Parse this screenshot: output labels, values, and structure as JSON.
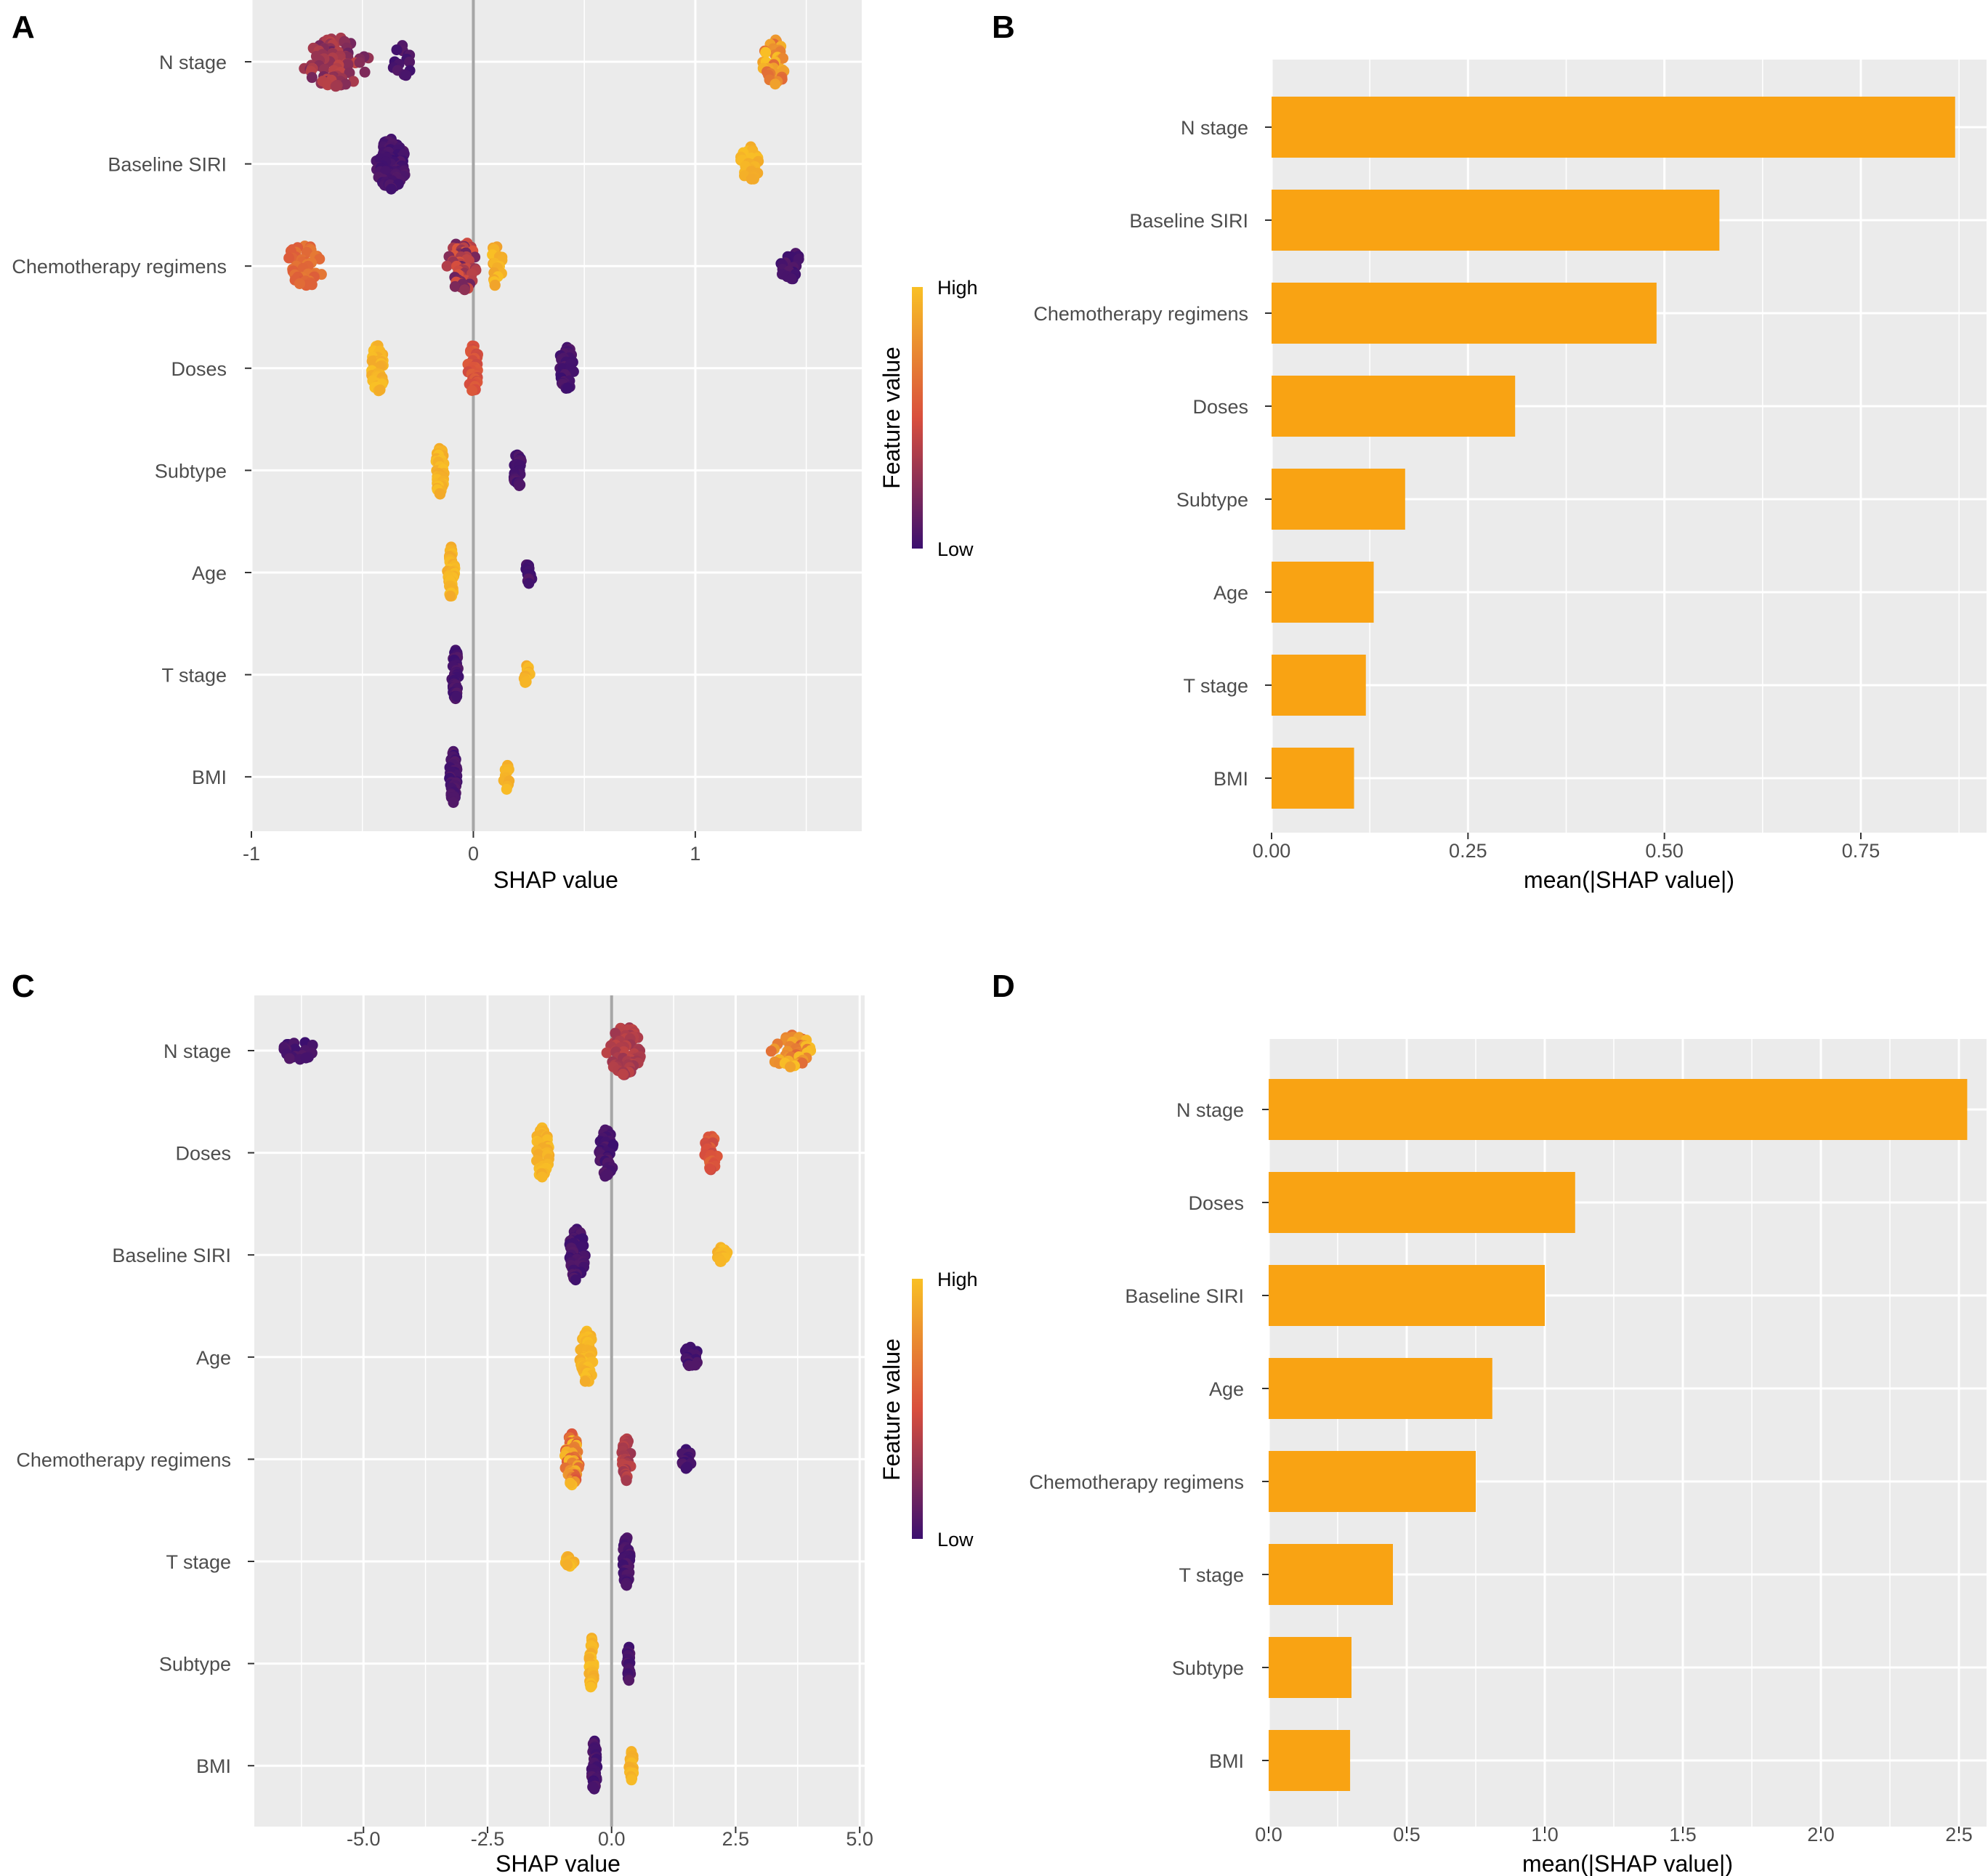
{
  "colors": {
    "panel_bg": "#EBEBEB",
    "grid": "#FFFFFF",
    "bar": "#F9A313",
    "zero_line": "#A6A6A6",
    "tick_text": "#4D4D4D",
    "gradient_high": "#F9C025",
    "gradient_mid": "#D94F3D",
    "gradient_low": "#3B0F6F"
  },
  "chart_data": [
    {
      "id": "A",
      "panel_label": "A",
      "type": "scatter",
      "subtype": "shap-beeswarm",
      "xlabel": "SHAP value",
      "xlim": [
        -1,
        1.75
      ],
      "xticks": [
        -1,
        0,
        1
      ],
      "xtick_labels": [
        "-1",
        "0",
        "1"
      ],
      "features": [
        "N stage",
        "Baseline SIRI",
        "Chemotherapy regimens",
        "Doses",
        "Subtype",
        "Age",
        "T stage",
        "BMI"
      ],
      "legend": {
        "title": "Feature value",
        "high": "High",
        "low": "Low"
      },
      "clusters": [
        [
          {
            "x": -0.62,
            "spread": 0.3,
            "half": 0.46,
            "n": 80,
            "fv": [
              0.15,
              0.42
            ]
          },
          {
            "x": -0.32,
            "spread": 0.1,
            "half": 0.3,
            "n": 14,
            "fv": [
              0.0,
              0.1
            ]
          },
          {
            "x": 1.36,
            "spread": 0.12,
            "half": 0.42,
            "n": 34,
            "fv": [
              0.6,
              1.0
            ]
          }
        ],
        [
          {
            "x": -0.37,
            "spread": 0.14,
            "half": 0.46,
            "n": 95,
            "fv": [
              0.0,
              0.08
            ]
          },
          {
            "x": 1.25,
            "spread": 0.1,
            "half": 0.3,
            "n": 30,
            "fv": [
              0.9,
              1.0
            ]
          }
        ],
        [
          {
            "x": -0.76,
            "spread": 0.18,
            "half": 0.4,
            "n": 44,
            "fv": [
              0.55,
              0.7
            ]
          },
          {
            "x": -0.05,
            "spread": 0.14,
            "half": 0.46,
            "n": 58,
            "fv": [
              0.15,
              0.55
            ]
          },
          {
            "x": 0.1,
            "spread": 0.08,
            "half": 0.4,
            "n": 18,
            "fv": [
              0.85,
              1.0
            ]
          },
          {
            "x": 1.43,
            "spread": 0.1,
            "half": 0.28,
            "n": 22,
            "fv": [
              0.0,
              0.08
            ]
          }
        ],
        [
          {
            "x": -0.43,
            "spread": 0.06,
            "half": 0.44,
            "n": 44,
            "fv": [
              0.9,
              1.0
            ]
          },
          {
            "x": 0.0,
            "spread": 0.05,
            "half": 0.44,
            "n": 42,
            "fv": [
              0.45,
              0.58
            ]
          },
          {
            "x": 0.42,
            "spread": 0.07,
            "half": 0.42,
            "n": 36,
            "fv": [
              0.0,
              0.08
            ]
          }
        ],
        [
          {
            "x": -0.15,
            "spread": 0.04,
            "half": 0.46,
            "n": 40,
            "fv": [
              0.9,
              1.0
            ]
          },
          {
            "x": 0.2,
            "spread": 0.04,
            "half": 0.32,
            "n": 26,
            "fv": [
              0.0,
              0.08
            ]
          }
        ],
        [
          {
            "x": -0.1,
            "spread": 0.035,
            "half": 0.46,
            "n": 42,
            "fv": [
              0.9,
              1.0
            ]
          },
          {
            "x": 0.25,
            "spread": 0.035,
            "half": 0.18,
            "n": 14,
            "fv": [
              0.0,
              0.08
            ]
          }
        ],
        [
          {
            "x": -0.08,
            "spread": 0.035,
            "half": 0.46,
            "n": 42,
            "fv": [
              0.0,
              0.08
            ]
          },
          {
            "x": 0.24,
            "spread": 0.03,
            "half": 0.16,
            "n": 12,
            "fv": [
              0.9,
              1.0
            ]
          }
        ],
        [
          {
            "x": -0.09,
            "spread": 0.035,
            "half": 0.48,
            "n": 44,
            "fv": [
              0.0,
              0.08
            ]
          },
          {
            "x": 0.15,
            "spread": 0.03,
            "half": 0.22,
            "n": 14,
            "fv": [
              0.9,
              1.0
            ]
          }
        ]
      ]
    },
    {
      "id": "B",
      "panel_label": "B",
      "type": "bar",
      "orientation": "horizontal",
      "xlabel": "mean(|SHAP value|)",
      "xlim": [
        0,
        0.91
      ],
      "xticks": [
        0,
        0.25,
        0.5,
        0.75
      ],
      "xtick_labels": [
        "0.00",
        "0.25",
        "0.50",
        "0.75"
      ],
      "categories": [
        "N stage",
        "Baseline SIRI",
        "Chemotherapy regimens",
        "Doses",
        "Subtype",
        "Age",
        "T stage",
        "BMI"
      ],
      "values": [
        0.87,
        0.57,
        0.49,
        0.31,
        0.17,
        0.13,
        0.12,
        0.105
      ]
    },
    {
      "id": "C",
      "panel_label": "C",
      "type": "scatter",
      "subtype": "shap-beeswarm",
      "xlabel": "SHAP value",
      "xlim": [
        -7.2,
        5.1
      ],
      "xticks": [
        -5,
        -2.5,
        0,
        2.5,
        5
      ],
      "xtick_labels": [
        "-5.0",
        "-2.5",
        "0.0",
        "2.5",
        "5.0"
      ],
      "features": [
        "N stage",
        "Doses",
        "Baseline SIRI",
        "Age",
        "Chemotherapy regimens",
        "T stage",
        "Subtype",
        "BMI"
      ],
      "legend": {
        "title": "Feature value",
        "high": "High",
        "low": "Low"
      },
      "clusters": [
        [
          {
            "x": -6.3,
            "spread": 0.7,
            "half": 0.18,
            "n": 22,
            "fv": [
              0.0,
              0.08
            ]
          },
          {
            "x": 0.25,
            "spread": 0.7,
            "half": 0.46,
            "n": 70,
            "fv": [
              0.3,
              0.42
            ]
          },
          {
            "x": 3.6,
            "spread": 0.9,
            "half": 0.3,
            "n": 44,
            "fv": [
              0.6,
              1.0
            ]
          }
        ],
        [
          {
            "x": -1.4,
            "spread": 0.3,
            "half": 0.46,
            "n": 44,
            "fv": [
              0.9,
              1.0
            ]
          },
          {
            "x": -0.1,
            "spread": 0.3,
            "half": 0.46,
            "n": 42,
            "fv": [
              0.0,
              0.08
            ]
          },
          {
            "x": 2.0,
            "spread": 0.3,
            "half": 0.32,
            "n": 26,
            "fv": [
              0.45,
              0.6
            ]
          }
        ],
        [
          {
            "x": -0.7,
            "spread": 0.35,
            "half": 0.48,
            "n": 64,
            "fv": [
              0.0,
              0.08
            ]
          },
          {
            "x": 2.2,
            "spread": 0.3,
            "half": 0.12,
            "n": 18,
            "fv": [
              0.9,
              1.0
            ]
          }
        ],
        [
          {
            "x": -0.5,
            "spread": 0.3,
            "half": 0.48,
            "n": 64,
            "fv": [
              0.9,
              1.0
            ]
          },
          {
            "x": 1.6,
            "spread": 0.3,
            "half": 0.18,
            "n": 20,
            "fv": [
              0.0,
              0.08
            ]
          }
        ],
        [
          {
            "x": -0.8,
            "spread": 0.3,
            "half": 0.48,
            "n": 56,
            "fv": [
              0.5,
              1.0
            ]
          },
          {
            "x": 0.3,
            "spread": 0.2,
            "half": 0.4,
            "n": 34,
            "fv": [
              0.3,
              0.42
            ]
          },
          {
            "x": 1.5,
            "spread": 0.3,
            "half": 0.16,
            "n": 18,
            "fv": [
              0.0,
              0.08
            ]
          }
        ],
        [
          {
            "x": -0.85,
            "spread": 0.2,
            "half": 0.1,
            "n": 12,
            "fv": [
              0.9,
              1.0
            ]
          },
          {
            "x": 0.3,
            "spread": 0.15,
            "half": 0.46,
            "n": 40,
            "fv": [
              0.0,
              0.08
            ]
          }
        ],
        [
          {
            "x": -0.4,
            "spread": 0.12,
            "half": 0.48,
            "n": 40,
            "fv": [
              0.9,
              1.0
            ]
          },
          {
            "x": 0.35,
            "spread": 0.1,
            "half": 0.3,
            "n": 22,
            "fv": [
              0.0,
              0.08
            ]
          }
        ],
        [
          {
            "x": -0.35,
            "spread": 0.12,
            "half": 0.48,
            "n": 40,
            "fv": [
              0.0,
              0.08
            ]
          },
          {
            "x": 0.4,
            "spread": 0.1,
            "half": 0.26,
            "n": 20,
            "fv": [
              0.9,
              1.0
            ]
          }
        ]
      ]
    },
    {
      "id": "D",
      "panel_label": "D",
      "type": "bar",
      "orientation": "horizontal",
      "xlabel": "mean(|SHAP value|)",
      "xlim": [
        0,
        2.6
      ],
      "xticks": [
        0,
        0.5,
        1,
        1.5,
        2,
        2.5
      ],
      "xtick_labels": [
        "0.0",
        "0.5",
        "1.0",
        "1.5",
        "2.0",
        "2.5"
      ],
      "categories": [
        "N stage",
        "Doses",
        "Baseline SIRI",
        "Age",
        "Chemotherapy regimens",
        "T stage",
        "Subtype",
        "BMI"
      ],
      "values": [
        2.53,
        1.11,
        1.0,
        0.81,
        0.75,
        0.45,
        0.3,
        0.295
      ]
    }
  ]
}
